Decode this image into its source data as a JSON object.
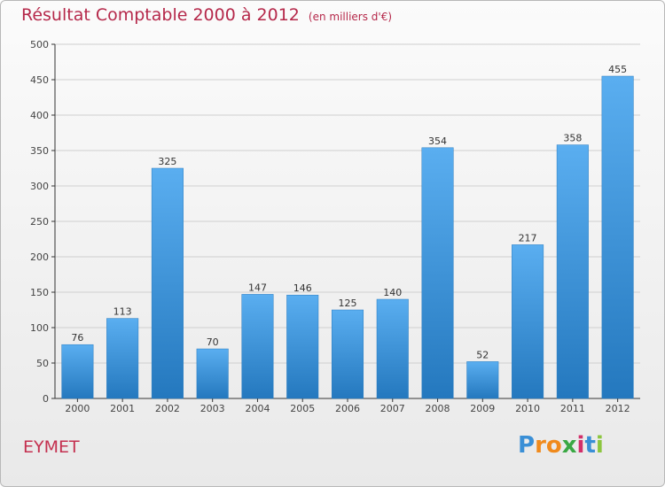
{
  "header": {
    "title": "Résultat Comptable 2000 à 2012",
    "subtitle": "(en milliers d'€)"
  },
  "place_name": "EYMET",
  "brand": {
    "text": "Proxiti",
    "letters": [
      "P",
      "r",
      "o",
      "x",
      "i",
      "t",
      "i"
    ],
    "letter_colors": [
      "#3a8fd6",
      "#f08a1c",
      "#f08a1c",
      "#3aa844",
      "#d22f6a",
      "#3a8fd6",
      "#8cc63f"
    ]
  },
  "colors": {
    "bar_top": "#5aaef0",
    "bar_bottom": "#2478be",
    "grid": "#cfcfcf",
    "axis": "#333333",
    "title": "#b5284a"
  },
  "chart_data": {
    "type": "bar",
    "title": "Résultat Comptable 2000 à 2012",
    "subtitle": "(en milliers d'€)",
    "xlabel": "",
    "ylabel": "",
    "categories": [
      "2000",
      "2001",
      "2002",
      "2003",
      "2004",
      "2005",
      "2006",
      "2007",
      "2008",
      "2009",
      "2010",
      "2011",
      "2012"
    ],
    "values": [
      76,
      113,
      325,
      70,
      147,
      146,
      125,
      140,
      354,
      52,
      217,
      358,
      455
    ],
    "ylim": [
      0,
      500
    ],
    "yticks": [
      0,
      50,
      100,
      150,
      200,
      250,
      300,
      350,
      400,
      450,
      500
    ],
    "grid": true
  }
}
